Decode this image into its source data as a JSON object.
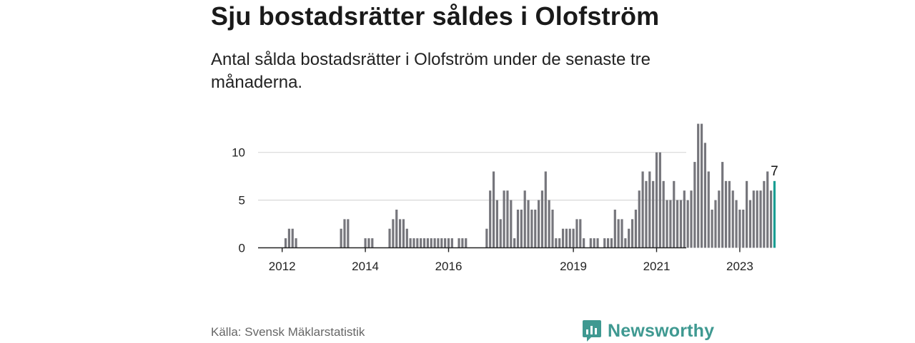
{
  "header": {
    "title": "Sju bostadsrätter såldes i Olofström",
    "subtitle": "Antal sålda bostadsrätter i Olofström under de senaste tre månaderna."
  },
  "footer": {
    "source": "Källa: Svensk Mäklarstatistik",
    "brand": "Newsworthy"
  },
  "colors": {
    "bar": "#76767c",
    "highlight": "#1a9e93",
    "grid": "#d8d8d8",
    "axis": "#222222",
    "brand": "#3f9991"
  },
  "chart_data": {
    "type": "bar",
    "title": "Sju bostadsrätter såldes i Olofström",
    "subtitle": "Antal sålda bostadsrätter i Olofström under de senaste tre månaderna.",
    "xlabel": "",
    "ylabel": "",
    "start": "2011-07",
    "frequency": "monthly",
    "values": [
      0,
      0,
      0,
      0,
      0,
      0,
      0,
      1,
      2,
      2,
      1,
      0,
      0,
      0,
      0,
      0,
      0,
      0,
      0,
      0,
      0,
      0,
      0,
      2,
      3,
      3,
      0,
      0,
      0,
      0,
      1,
      1,
      1,
      0,
      0,
      0,
      0,
      2,
      3,
      4,
      3,
      3,
      2,
      1,
      1,
      1,
      1,
      1,
      1,
      1,
      1,
      1,
      1,
      1,
      1,
      1,
      0,
      1,
      1,
      1,
      0,
      0,
      0,
      0,
      0,
      2,
      6,
      8,
      5,
      3,
      6,
      6,
      5,
      1,
      4,
      4,
      6,
      5,
      4,
      4,
      5,
      6,
      8,
      5,
      4,
      1,
      1,
      2,
      2,
      2,
      2,
      3,
      3,
      1,
      0,
      1,
      1,
      1,
      0,
      1,
      1,
      1,
      4,
      3,
      3,
      1,
      2,
      3,
      4,
      6,
      8,
      7,
      8,
      7,
      10,
      10,
      7,
      5,
      5,
      7,
      5,
      5,
      6,
      5,
      6,
      9,
      13,
      13,
      11,
      8,
      4,
      5,
      6,
      9,
      7,
      7,
      6,
      5,
      4,
      4,
      7,
      5,
      6,
      6,
      6,
      7,
      8,
      6,
      7
    ],
    "highlight_last": true,
    "data_label": "7",
    "x_ticks": [
      "2012",
      "2014",
      "2016",
      "2019",
      "2021",
      "2023"
    ],
    "y_ticks": [
      0,
      5,
      10
    ],
    "ylim": [
      0,
      13
    ],
    "grid": true,
    "legend": "none"
  }
}
